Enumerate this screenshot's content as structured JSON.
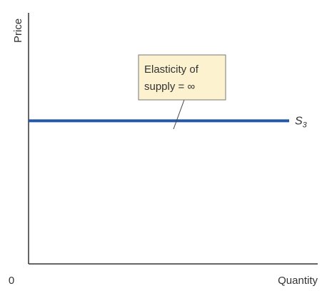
{
  "chart_data": {
    "type": "line",
    "title": "",
    "xlabel": "Quantity",
    "ylabel": "Price",
    "origin_label": "0",
    "xlim": [
      0,
      1
    ],
    "ylim": [
      0,
      1
    ],
    "grid": false,
    "series": [
      {
        "name": "S3",
        "x": [
          0,
          1
        ],
        "y": [
          0.57,
          0.57
        ],
        "color": "#2457a6"
      }
    ],
    "series_label": {
      "base": "S",
      "sub": "3"
    },
    "annotation": {
      "line1": "Elasticity of",
      "line2": "supply = ∞"
    }
  }
}
